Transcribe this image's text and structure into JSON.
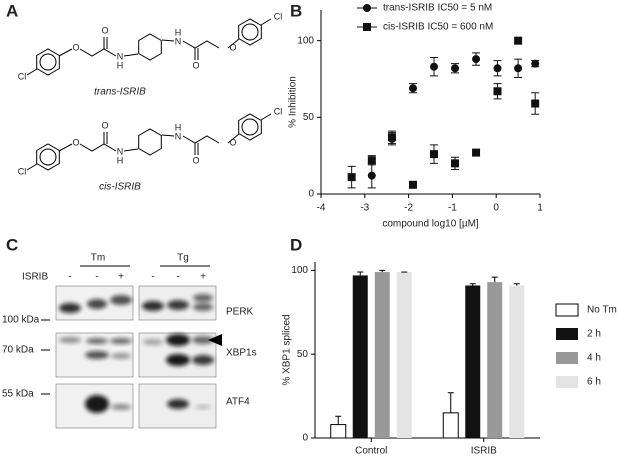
{
  "panels": [
    "A",
    "B",
    "C",
    "D"
  ],
  "structures": [
    {
      "name": "trans-ISRIB",
      "atoms": [
        "Cl",
        "O",
        "O",
        "N",
        "H",
        "H",
        "N",
        "O",
        "O",
        "Cl"
      ]
    },
    {
      "name": "cis-ISRIB",
      "atoms": [
        "Cl",
        "O",
        "O",
        "N",
        "H",
        "H",
        "N",
        "O",
        "O",
        "Cl"
      ]
    }
  ],
  "blot": {
    "treatments": [
      "Tm",
      "Tg"
    ],
    "row_label": "ISRIB",
    "lanes": [
      "-",
      "-",
      "+",
      "-",
      "-",
      "+"
    ],
    "proteins": [
      "PERK",
      "XBP1s",
      "ATF4"
    ],
    "markers": [
      "100 kDa",
      "70 kDa",
      "55 kDa"
    ]
  },
  "chart_data": [
    {
      "type": "scatter",
      "ylabel": "% Inhibition",
      "xlabel": "compound log10 [µM]",
      "xlim": [
        -4,
        1
      ],
      "xticks": [
        -4,
        -3,
        -2,
        -1,
        0,
        1
      ],
      "ylim": [
        0,
        120
      ],
      "yticks": [
        0,
        50,
        100
      ],
      "legend": "upper left",
      "series": [
        {
          "name": "trans-ISRIB IC50 = 5 nM",
          "color": "#111111",
          "marker": "circle",
          "x": [
            -2.84,
            -2.38,
            -1.9,
            -1.42,
            -0.94,
            -0.46,
            0.03,
            0.5,
            0.89
          ],
          "values": [
            12,
            36,
            69,
            83,
            82,
            88,
            82,
            82,
            85
          ],
          "errors": [
            8,
            4,
            3,
            6,
            3,
            4,
            5,
            6,
            2
          ]
        },
        {
          "name": "cis-ISRIB IC50 = 600 nM",
          "color": "#111111",
          "marker": "square",
          "x": [
            -3.3,
            -2.84,
            -2.38,
            -1.9,
            -1.42,
            -0.94,
            -0.46,
            0.03,
            0.5,
            0.89
          ],
          "values": [
            11,
            22,
            37,
            6,
            26,
            20,
            27,
            67,
            100,
            59
          ],
          "errors": [
            7,
            3,
            4,
            2,
            6,
            4,
            2,
            5,
            2,
            7
          ]
        }
      ]
    },
    {
      "type": "bar",
      "ylabel": "% XBP1 spliced",
      "categories": [
        "Control",
        "ISRIB"
      ],
      "ylim": [
        0,
        105
      ],
      "yticks": [
        0,
        50,
        100
      ],
      "legend": "right",
      "series": [
        {
          "name": "No Tm",
          "color": "#ffffff",
          "values": [
            8,
            15
          ],
          "errors": [
            5,
            12
          ]
        },
        {
          "name": "2 h",
          "color": "#111111",
          "values": [
            97,
            91
          ],
          "errors": [
            2,
            1
          ]
        },
        {
          "name": "4 h",
          "color": "#999999",
          "values": [
            99,
            93
          ],
          "errors": [
            1,
            3
          ]
        },
        {
          "name": "6 h",
          "color": "#e4e4e4",
          "values": [
            99,
            91
          ],
          "errors": [
            0,
            1
          ]
        }
      ]
    }
  ]
}
